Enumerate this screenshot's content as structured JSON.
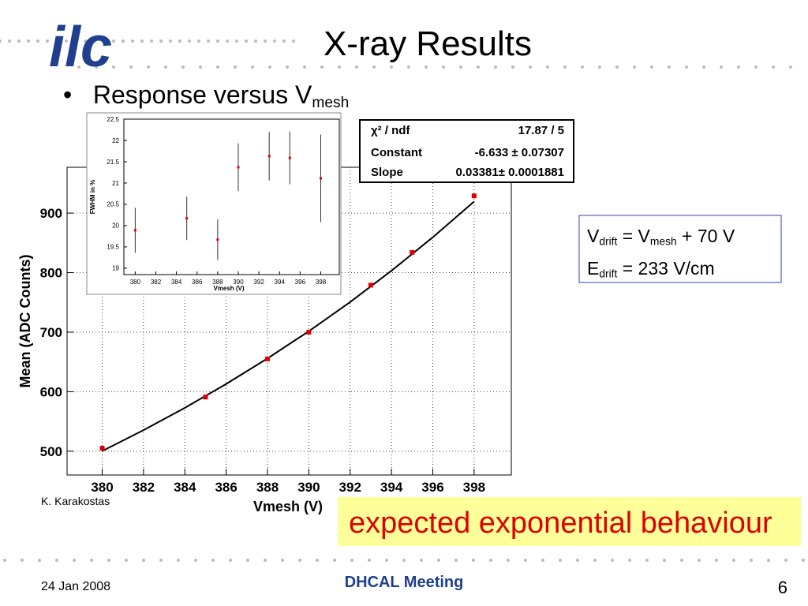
{
  "slide": {
    "logo": "ilc",
    "title": "X-ray Results",
    "bullet": {
      "mark": "•",
      "text": "Response versus V",
      "sub": "mesh"
    },
    "note": [
      {
        "a": "V",
        "a_sub": "drift",
        "b": " = V",
        "b_sub": "mesh",
        "c": " + 70 V"
      },
      {
        "a": "E",
        "a_sub": "drift",
        "c": " = 233 V/cm"
      }
    ],
    "credit": "K. Karakostas",
    "highlight": "expected exponential behaviour",
    "footer": {
      "date": "24 Jan 2008",
      "center": "DHCAL Meeting",
      "page": "6"
    }
  },
  "stat_box": {
    "rows": [
      {
        "label": "χ² / ndf",
        "value": "17.87 / 5"
      },
      {
        "label": "Constant",
        "value": "-6.633 ± 0.07307"
      },
      {
        "label": "Slope",
        "value": "0.03381± 0.0001881"
      }
    ]
  },
  "chart_data": [
    {
      "type": "scatter",
      "x_label": "Vmesh (V)",
      "y_label": "Mean (ADC Counts)",
      "x": [
        380,
        385,
        388,
        390,
        393,
        395,
        398
      ],
      "values": [
        505,
        591,
        655,
        700,
        779,
        834,
        929
      ],
      "color": "#dd0000",
      "fit": {
        "x": [
          380,
          382,
          384,
          386,
          388,
          390,
          392,
          394,
          396,
          398
        ],
        "values": [
          500.3,
          535.4,
          572.9,
          613.0,
          655.9,
          701.5,
          750.6,
          803.2,
          859.4,
          919.5
        ],
        "color": "#000000"
      },
      "xlim": [
        378.3,
        399.8
      ],
      "ylim": [
        460,
        977
      ],
      "xticks": [
        380,
        382,
        384,
        386,
        388,
        390,
        392,
        394,
        396,
        398
      ],
      "yticks": [
        500,
        600,
        700,
        800,
        900
      ],
      "grid": true
    },
    {
      "type": "errorbar",
      "x_label": "Vmesh (V)",
      "y_label": "FWHM in %",
      "x": [
        380,
        385,
        388,
        390,
        393,
        395,
        398
      ],
      "values": [
        19.89,
        20.17,
        19.67,
        21.37,
        21.63,
        21.59,
        21.11
      ],
      "errors": [
        0.53,
        0.51,
        0.48,
        0.56,
        0.57,
        0.62,
        1.03
      ],
      "color": "#dd0000",
      "xlim": [
        378.9,
        399.8
      ],
      "ylim": [
        18.85,
        22.5
      ],
      "xticks": [
        380,
        382,
        384,
        386,
        388,
        390,
        392,
        394,
        396,
        398
      ],
      "yticks": [
        19,
        19.5,
        20,
        20.5,
        21,
        21.5,
        22,
        22.5
      ],
      "grid": false
    }
  ]
}
